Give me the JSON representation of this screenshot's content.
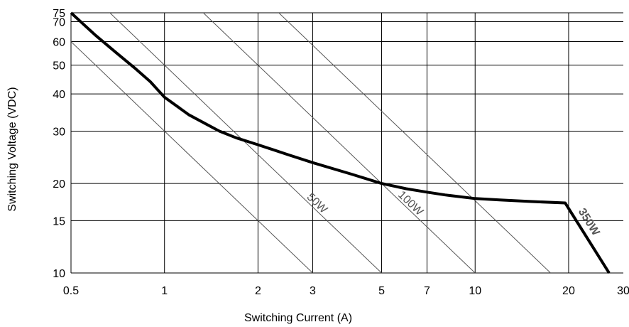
{
  "chart_data": {
    "type": "line",
    "title": "",
    "xlabel": "Switching Current (A)",
    "ylabel": "Switching Voltage (VDC)",
    "x_scale": "log",
    "y_scale": "log",
    "xlim": [
      0.5,
      30
    ],
    "ylim": [
      10,
      75
    ],
    "grid": true,
    "x_ticks": [
      0.5,
      1,
      2,
      3,
      5,
      7,
      10,
      20,
      30
    ],
    "x_tick_labels": [
      "0.5",
      "1",
      "2",
      "3",
      "5",
      "7",
      "10",
      "20",
      "30"
    ],
    "y_ticks": [
      10,
      15,
      20,
      30,
      40,
      50,
      60,
      70,
      75
    ],
    "y_tick_labels": [
      "10",
      "15",
      "20",
      "30",
      "40",
      "50",
      "60",
      "70",
      "75"
    ],
    "power_lines": [
      {
        "label": "",
        "watts": 30,
        "x": [
          0.4,
          3.0
        ],
        "y": [
          75,
          10
        ]
      },
      {
        "label": "50W",
        "watts": 50,
        "x": [
          0.667,
          5.0
        ],
        "y": [
          75,
          10
        ]
      },
      {
        "label": "100W",
        "watts": 100,
        "x": [
          1.333,
          10.0
        ],
        "y": [
          75,
          10
        ]
      },
      {
        "label": "",
        "watts": 175,
        "x": [
          2.333,
          17.5
        ],
        "y": [
          75,
          10
        ]
      }
    ],
    "series": [
      {
        "name": "",
        "x": [
          0.5,
          0.6,
          0.7,
          0.8,
          0.9,
          1.0,
          1.2,
          1.5,
          1.7,
          2.0,
          2.5,
          3.0,
          4.0,
          5.0,
          6.0,
          7.0,
          8.0,
          10.0,
          12.0,
          15.0,
          19.5,
          27.0
        ],
        "y": [
          75,
          63,
          55,
          49,
          44,
          39,
          34,
          30,
          28.5,
          27,
          25,
          23.5,
          21.5,
          20,
          19.2,
          18.7,
          18.3,
          17.8,
          17.6,
          17.4,
          17.2,
          10
        ]
      }
    ],
    "annotations": [
      {
        "text": "350W",
        "x": 25,
        "y": 14,
        "bold": true
      }
    ]
  }
}
